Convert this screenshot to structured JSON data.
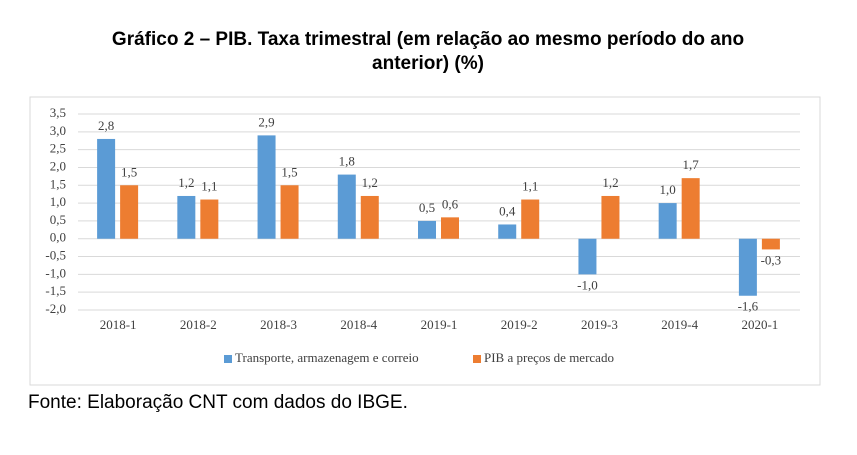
{
  "chart_data": {
    "type": "bar",
    "title": "Gráfico 2 – PIB. Taxa trimestral (em relação ao mesmo período do ano anterior) (%)",
    "categories": [
      "2018-1",
      "2018-2",
      "2018-3",
      "2018-4",
      "2019-1",
      "2019-2",
      "2019-3",
      "2019-4",
      "2020-1"
    ],
    "series": [
      {
        "name": "Transporte, armazenagem e correio",
        "color": "#5b9bd5",
        "values": [
          2.8,
          1.2,
          2.9,
          1.8,
          0.5,
          0.4,
          -1.0,
          1.0,
          -1.6
        ],
        "value_labels": [
          "2,8",
          "1,2",
          "2,9",
          "1,8",
          "0,5",
          "0,4",
          "-1,0",
          "1,0",
          "-1,6"
        ]
      },
      {
        "name": "PIB a preços de mercado",
        "color": "#ed7d31",
        "values": [
          1.5,
          1.1,
          1.5,
          1.2,
          0.6,
          1.1,
          1.2,
          1.7,
          -0.3
        ],
        "value_labels": [
          "1,5",
          "1,1",
          "1,5",
          "1,2",
          "0,6",
          "1,1",
          "1,2",
          "1,7",
          "-0,3"
        ]
      }
    ],
    "ylim": [
      -2.0,
      3.5
    ],
    "yticks": [
      {
        "value": -2.0,
        "label": "-2,0"
      },
      {
        "value": -1.5,
        "label": "-1,5"
      },
      {
        "value": -1.0,
        "label": "-1,0"
      },
      {
        "value": -0.5,
        "label": "-0,5"
      },
      {
        "value": 0.0,
        "label": "0,0"
      },
      {
        "value": 0.5,
        "label": "0,5"
      },
      {
        "value": 1.0,
        "label": "1,0"
      },
      {
        "value": 1.5,
        "label": "1,5"
      },
      {
        "value": 2.0,
        "label": "2,0"
      },
      {
        "value": 2.5,
        "label": "2,5"
      },
      {
        "value": 3.0,
        "label": "3,0"
      },
      {
        "value": 3.5,
        "label": "3,5"
      }
    ],
    "grid": true,
    "legend": "bottom",
    "source": "Fonte: Elaboração CNT com dados do IBGE."
  }
}
